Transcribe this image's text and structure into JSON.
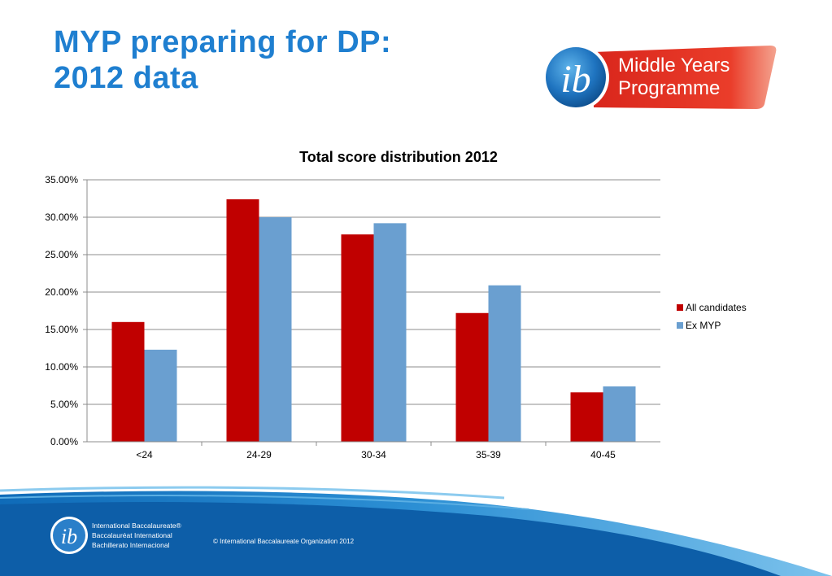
{
  "slide": {
    "title_line1": "MYP preparing for DP:",
    "title_line2": "2012 data"
  },
  "logo": {
    "line1": "Middle Years",
    "line2": "Programme",
    "mark": "ib",
    "brand_red": "#e8352a",
    "brand_blue": "#1d6fb8"
  },
  "chart_data": {
    "type": "bar",
    "title": "Total score distribution 2012",
    "categories": [
      "<24",
      "24-29",
      "30-34",
      "35-39",
      "40-45"
    ],
    "series": [
      {
        "name": "All candidates",
        "color": "#c00000",
        "values": [
          16.0,
          32.4,
          27.7,
          17.2,
          6.6
        ]
      },
      {
        "name": "Ex MYP",
        "color": "#6a9fd0",
        "values": [
          12.3,
          30.0,
          29.2,
          20.9,
          7.4
        ]
      }
    ],
    "ylim": [
      0,
      35
    ],
    "yticks": [
      0,
      5,
      10,
      15,
      20,
      25,
      30,
      35
    ],
    "ytick_labels": [
      "0.00%",
      "5.00%",
      "10.00%",
      "15.00%",
      "20.00%",
      "25.00%",
      "30.00%",
      "35.00%"
    ],
    "xlabel": "",
    "ylabel": "",
    "grid": true,
    "legend_position": "right"
  },
  "footer": {
    "orgs": [
      "International Baccalaureate®",
      "Baccalauréat International",
      "Bachillerato Internacional"
    ],
    "copyright": "© International Baccalaureate Organization 2012"
  }
}
